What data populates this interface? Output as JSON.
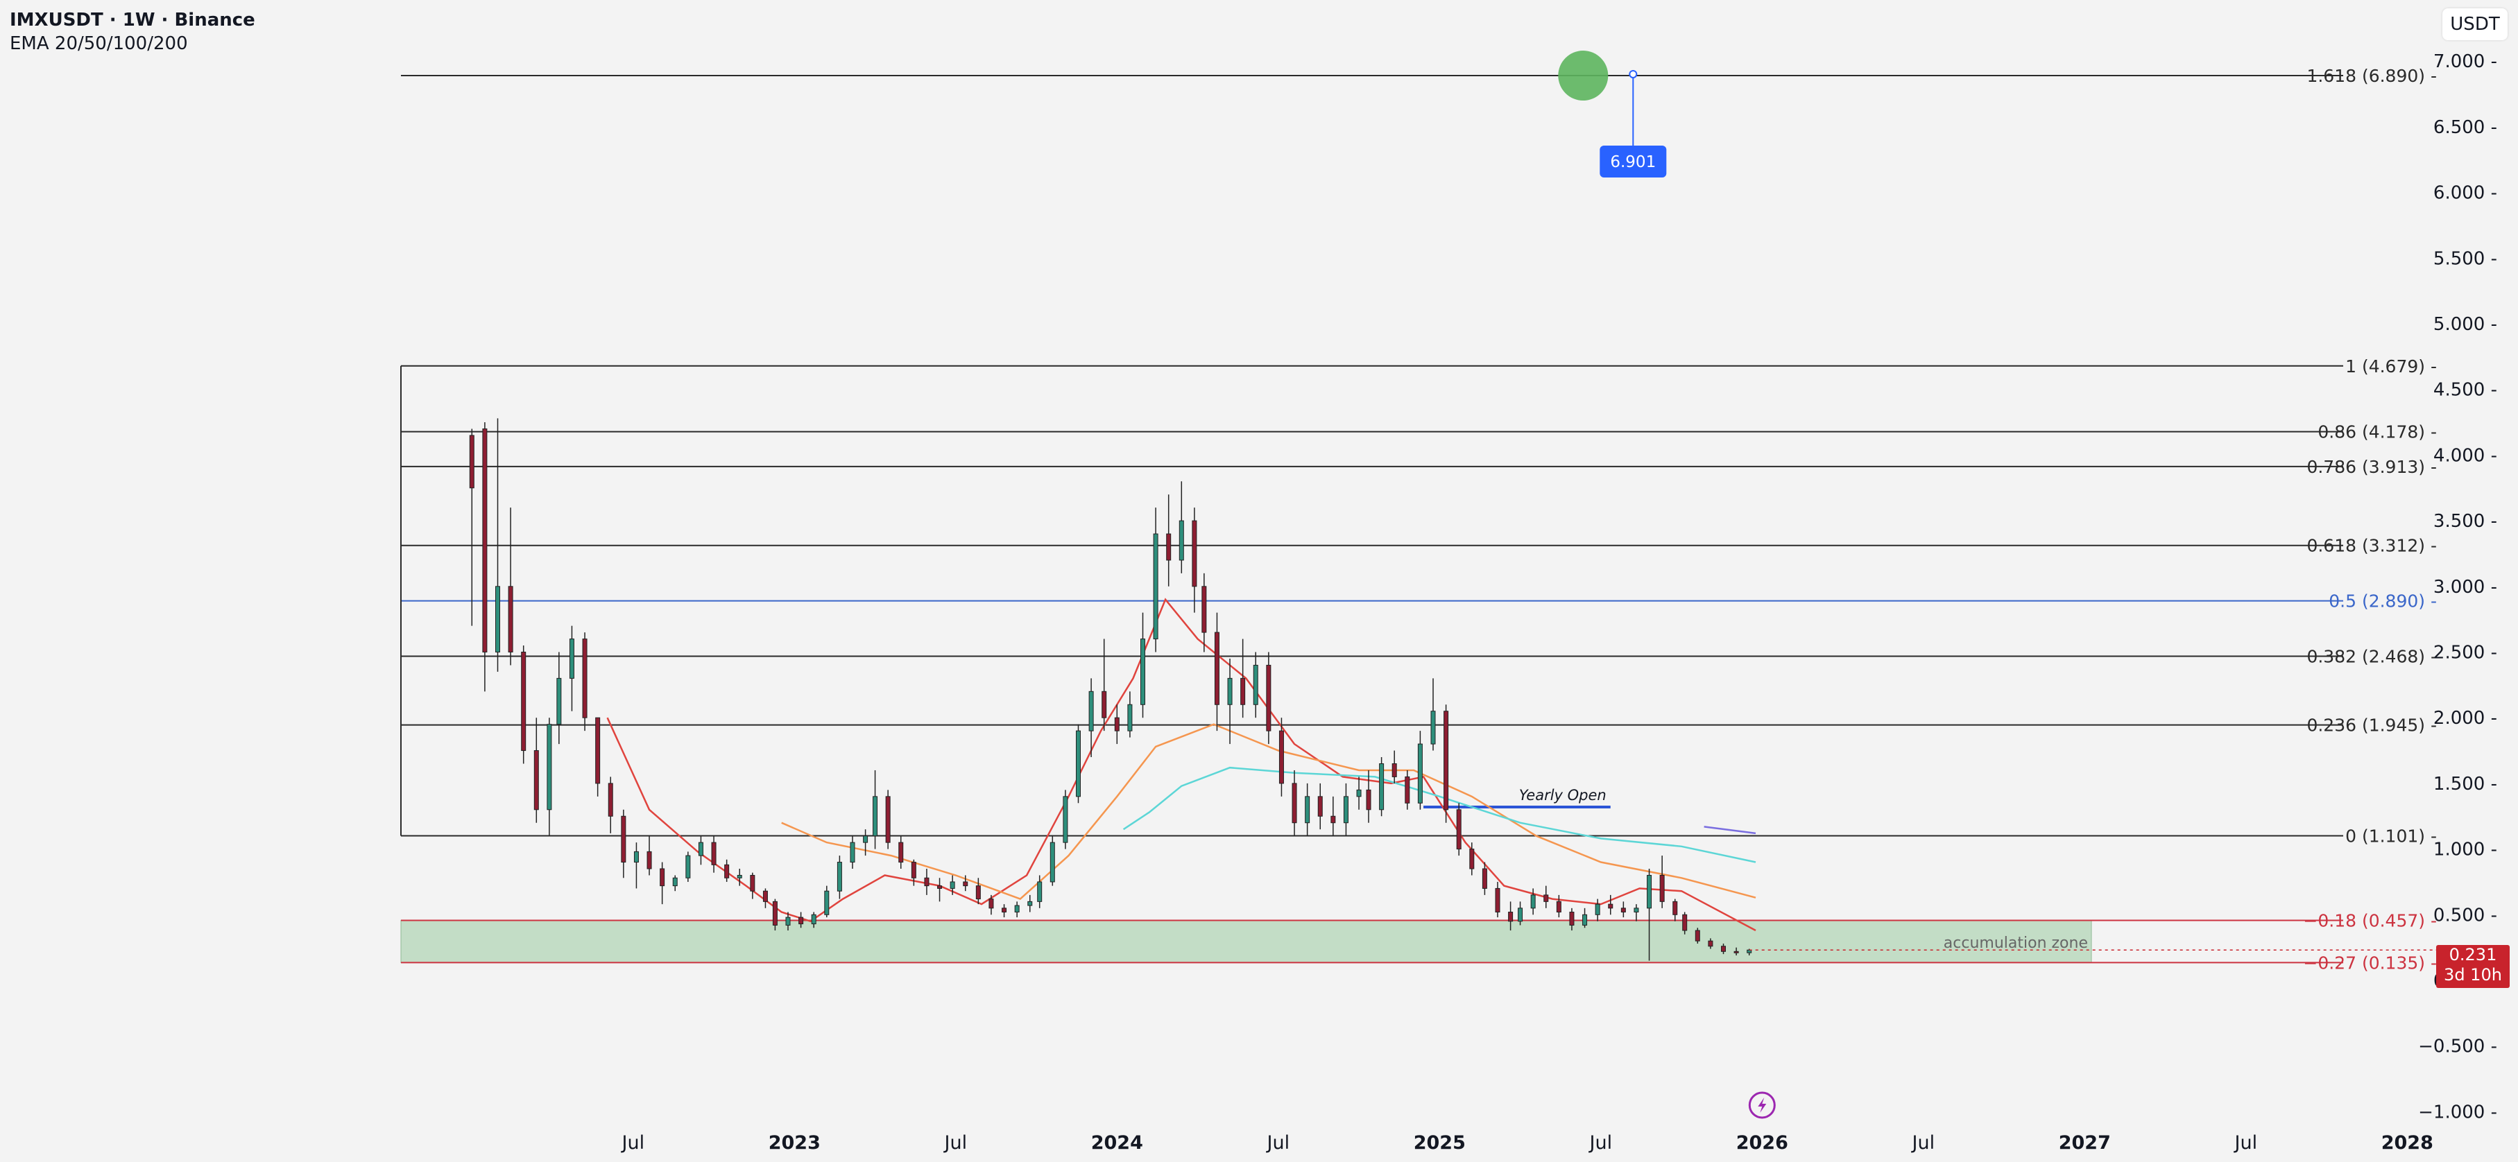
{
  "header": {
    "title": "IMXUSDT · 1W · Binance",
    "indicator": "EMA 20/50/100/200",
    "currency": "USDT"
  },
  "last_price": {
    "value": "0.231",
    "countdown": "3d 10h"
  },
  "colors": {
    "background": "#f3f3f3",
    "up": "#2e8f7c",
    "down": "#8e1e32",
    "ema20": "#e0443e",
    "ema50": "#f5964f",
    "ema100": "#5cd6d6",
    "fib_line": "#2a2a2a",
    "fib_half": "#3a66c9",
    "fib_ext": "#cc3340",
    "zone_fill": "#c3ddc6",
    "yearly_open": "#2c55d6",
    "target": "#5db55e",
    "target_label": "#2962ff"
  },
  "chart_data": {
    "type": "candlestick",
    "ylim": [
      -1.0,
      7.0
    ],
    "y_ticks": [
      "7.000",
      "6.500",
      "6.000",
      "5.500",
      "5.000",
      "4.500",
      "4.000",
      "3.500",
      "3.000",
      "2.500",
      "2.000",
      "1.500",
      "1.000",
      "0.500",
      "0.000",
      "−0.500",
      "−1.000"
    ],
    "x_ticks": [
      "Jul",
      "2023",
      "Jul",
      "2024",
      "Jul",
      "2025",
      "Jul",
      "2026",
      "Jul",
      "2027",
      "Jul",
      "2028"
    ],
    "fib_levels": [
      {
        "label": "1.618 (6.890)",
        "value": 6.89,
        "color": "#2a2a2a"
      },
      {
        "label": "1 (4.679)",
        "value": 4.679,
        "color": "#2a2a2a"
      },
      {
        "label": "0.86 (4.178)",
        "value": 4.178,
        "color": "#2a2a2a"
      },
      {
        "label": "0.786 (3.913)",
        "value": 3.913,
        "color": "#2a2a2a"
      },
      {
        "label": "0.618 (3.312)",
        "value": 3.312,
        "color": "#2a2a2a"
      },
      {
        "label": "0.5 (2.890)",
        "value": 2.89,
        "color": "#3a66c9"
      },
      {
        "label": "0.382 (2.468)",
        "value": 2.468,
        "color": "#2a2a2a"
      },
      {
        "label": "0.236 (1.945)",
        "value": 1.945,
        "color": "#2a2a2a"
      },
      {
        "label": "0 (1.101)",
        "value": 1.101,
        "color": "#2a2a2a"
      },
      {
        "label": "−0.18 (0.457)",
        "value": 0.457,
        "color": "#cc3340"
      },
      {
        "label": "−0.27 (0.135)",
        "value": 0.135,
        "color": "#cc3340"
      }
    ],
    "zone": {
      "label": "accumulation zone",
      "from": 0.135,
      "to": 0.457
    },
    "yearly_open": {
      "label": "Yearly Open",
      "value": 1.32,
      "start": 2024.95,
      "end": 2025.53
    },
    "target": {
      "label": "6.901",
      "value": 6.901,
      "time": 2025.6
    },
    "emas": [
      {
        "name": "EMA 20",
        "color": "#e0443e",
        "points": [
          [
            2022.42,
            2.0
          ],
          [
            2022.55,
            1.3
          ],
          [
            2022.7,
            0.98
          ],
          [
            2022.85,
            0.72
          ],
          [
            2022.96,
            0.52
          ],
          [
            2023.05,
            0.45
          ],
          [
            2023.15,
            0.62
          ],
          [
            2023.28,
            0.8
          ],
          [
            2023.45,
            0.72
          ],
          [
            2023.58,
            0.58
          ],
          [
            2023.72,
            0.8
          ],
          [
            2023.85,
            1.4
          ],
          [
            2023.95,
            1.9
          ],
          [
            2024.05,
            2.3
          ],
          [
            2024.15,
            2.9
          ],
          [
            2024.25,
            2.6
          ],
          [
            2024.4,
            2.3
          ],
          [
            2024.55,
            1.8
          ],
          [
            2024.7,
            1.55
          ],
          [
            2024.85,
            1.5
          ],
          [
            2024.95,
            1.55
          ],
          [
            2025.08,
            1.05
          ],
          [
            2025.2,
            0.72
          ],
          [
            2025.35,
            0.62
          ],
          [
            2025.5,
            0.58
          ],
          [
            2025.62,
            0.7
          ],
          [
            2025.75,
            0.68
          ],
          [
            2025.98,
            0.38
          ]
        ]
      },
      {
        "name": "EMA 50",
        "color": "#f5964f",
        "points": [
          [
            2022.96,
            1.2
          ],
          [
            2023.1,
            1.05
          ],
          [
            2023.3,
            0.95
          ],
          [
            2023.5,
            0.8
          ],
          [
            2023.7,
            0.62
          ],
          [
            2023.85,
            0.95
          ],
          [
            2024.0,
            1.4
          ],
          [
            2024.12,
            1.78
          ],
          [
            2024.3,
            1.95
          ],
          [
            2024.5,
            1.75
          ],
          [
            2024.75,
            1.6
          ],
          [
            2024.92,
            1.6
          ],
          [
            2025.1,
            1.4
          ],
          [
            2025.3,
            1.1
          ],
          [
            2025.5,
            0.9
          ],
          [
            2025.75,
            0.78
          ],
          [
            2025.98,
            0.63
          ]
        ]
      },
      {
        "name": "EMA 100",
        "color": "#5cd6d6",
        "points": [
          [
            2024.02,
            1.15
          ],
          [
            2024.1,
            1.28
          ],
          [
            2024.2,
            1.48
          ],
          [
            2024.35,
            1.62
          ],
          [
            2024.55,
            1.58
          ],
          [
            2024.8,
            1.55
          ],
          [
            2025.0,
            1.4
          ],
          [
            2025.25,
            1.2
          ],
          [
            2025.5,
            1.08
          ],
          [
            2025.75,
            1.02
          ],
          [
            2025.98,
            0.9
          ]
        ]
      },
      {
        "name": "EMA 200",
        "color": "#7a6ee0",
        "points": [
          [
            2025.82,
            1.17
          ],
          [
            2025.98,
            1.12
          ]
        ]
      }
    ],
    "candles": [
      [
        2022.0,
        4.15,
        4.2,
        2.7,
        3.75
      ],
      [
        2022.04,
        4.2,
        4.25,
        2.2,
        2.5
      ],
      [
        2022.08,
        2.5,
        4.28,
        2.35,
        3.0
      ],
      [
        2022.12,
        3.0,
        3.6,
        2.4,
        2.5
      ],
      [
        2022.16,
        2.5,
        2.55,
        1.65,
        1.75
      ],
      [
        2022.2,
        1.75,
        2.0,
        1.2,
        1.3
      ],
      [
        2022.24,
        1.3,
        2.0,
        1.1,
        1.95
      ],
      [
        2022.27,
        1.95,
        2.5,
        1.8,
        2.3
      ],
      [
        2022.31,
        2.3,
        2.7,
        2.05,
        2.6
      ],
      [
        2022.35,
        2.6,
        2.65,
        1.9,
        2.0
      ],
      [
        2022.39,
        2.0,
        2.0,
        1.4,
        1.5
      ],
      [
        2022.43,
        1.5,
        1.55,
        1.12,
        1.25
      ],
      [
        2022.47,
        1.25,
        1.3,
        0.78,
        0.9
      ],
      [
        2022.51,
        0.9,
        1.05,
        0.7,
        0.98
      ],
      [
        2022.55,
        0.98,
        1.1,
        0.8,
        0.85
      ],
      [
        2022.59,
        0.85,
        0.9,
        0.58,
        0.72
      ],
      [
        2022.63,
        0.72,
        0.8,
        0.68,
        0.78
      ],
      [
        2022.67,
        0.78,
        0.98,
        0.75,
        0.95
      ],
      [
        2022.71,
        0.95,
        1.1,
        0.88,
        1.05
      ],
      [
        2022.75,
        1.05,
        1.1,
        0.82,
        0.88
      ],
      [
        2022.79,
        0.88,
        0.92,
        0.75,
        0.78
      ],
      [
        2022.83,
        0.78,
        0.85,
        0.72,
        0.8
      ],
      [
        2022.87,
        0.8,
        0.82,
        0.62,
        0.68
      ],
      [
        2022.91,
        0.68,
        0.7,
        0.55,
        0.6
      ],
      [
        2022.94,
        0.6,
        0.62,
        0.38,
        0.42
      ],
      [
        2022.98,
        0.42,
        0.52,
        0.38,
        0.48
      ],
      [
        2023.02,
        0.48,
        0.52,
        0.4,
        0.43
      ],
      [
        2023.06,
        0.43,
        0.52,
        0.4,
        0.5
      ],
      [
        2023.1,
        0.5,
        0.72,
        0.48,
        0.68
      ],
      [
        2023.14,
        0.68,
        0.95,
        0.62,
        0.9
      ],
      [
        2023.18,
        0.9,
        1.1,
        0.85,
        1.05
      ],
      [
        2023.22,
        1.05,
        1.15,
        0.95,
        1.1
      ],
      [
        2023.25,
        1.1,
        1.6,
        1.0,
        1.4
      ],
      [
        2023.29,
        1.4,
        1.45,
        1.0,
        1.05
      ],
      [
        2023.33,
        1.05,
        1.1,
        0.85,
        0.9
      ],
      [
        2023.37,
        0.9,
        0.92,
        0.72,
        0.78
      ],
      [
        2023.41,
        0.78,
        0.85,
        0.65,
        0.72
      ],
      [
        2023.45,
        0.72,
        0.78,
        0.6,
        0.7
      ],
      [
        2023.49,
        0.7,
        0.8,
        0.65,
        0.75
      ],
      [
        2023.53,
        0.75,
        0.8,
        0.68,
        0.72
      ],
      [
        2023.57,
        0.72,
        0.78,
        0.58,
        0.62
      ],
      [
        2023.61,
        0.62,
        0.65,
        0.5,
        0.55
      ],
      [
        2023.65,
        0.55,
        0.58,
        0.48,
        0.52
      ],
      [
        2023.69,
        0.52,
        0.6,
        0.48,
        0.57
      ],
      [
        2023.73,
        0.57,
        0.65,
        0.52,
        0.6
      ],
      [
        2023.76,
        0.6,
        0.8,
        0.55,
        0.75
      ],
      [
        2023.8,
        0.75,
        1.1,
        0.72,
        1.05
      ],
      [
        2023.84,
        1.05,
        1.45,
        1.0,
        1.4
      ],
      [
        2023.88,
        1.4,
        1.95,
        1.35,
        1.9
      ],
      [
        2023.92,
        1.9,
        2.3,
        1.7,
        2.2
      ],
      [
        2023.96,
        2.2,
        2.6,
        1.9,
        2.0
      ],
      [
        2024.0,
        2.0,
        2.1,
        1.8,
        1.9
      ],
      [
        2024.04,
        1.9,
        2.2,
        1.85,
        2.1
      ],
      [
        2024.08,
        2.1,
        2.8,
        2.0,
        2.6
      ],
      [
        2024.12,
        2.6,
        3.6,
        2.5,
        3.4
      ],
      [
        2024.16,
        3.4,
        3.7,
        3.0,
        3.2
      ],
      [
        2024.2,
        3.2,
        3.8,
        3.1,
        3.5
      ],
      [
        2024.24,
        3.5,
        3.6,
        2.8,
        3.0
      ],
      [
        2024.27,
        3.0,
        3.1,
        2.5,
        2.65
      ],
      [
        2024.31,
        2.65,
        2.8,
        1.9,
        2.1
      ],
      [
        2024.35,
        2.1,
        2.45,
        1.8,
        2.3
      ],
      [
        2024.39,
        2.3,
        2.6,
        2.0,
        2.1
      ],
      [
        2024.43,
        2.1,
        2.5,
        2.0,
        2.4
      ],
      [
        2024.47,
        2.4,
        2.5,
        1.8,
        1.9
      ],
      [
        2024.51,
        1.9,
        2.0,
        1.4,
        1.5
      ],
      [
        2024.55,
        1.5,
        1.6,
        1.1,
        1.2
      ],
      [
        2024.59,
        1.2,
        1.5,
        1.1,
        1.4
      ],
      [
        2024.63,
        1.4,
        1.5,
        1.15,
        1.25
      ],
      [
        2024.67,
        1.25,
        1.4,
        1.1,
        1.2
      ],
      [
        2024.71,
        1.2,
        1.5,
        1.1,
        1.4
      ],
      [
        2024.75,
        1.4,
        1.55,
        1.3,
        1.45
      ],
      [
        2024.78,
        1.45,
        1.6,
        1.2,
        1.3
      ],
      [
        2024.82,
        1.3,
        1.7,
        1.25,
        1.65
      ],
      [
        2024.86,
        1.65,
        1.75,
        1.5,
        1.55
      ],
      [
        2024.9,
        1.55,
        1.6,
        1.3,
        1.35
      ],
      [
        2024.94,
        1.35,
        1.9,
        1.3,
        1.8
      ],
      [
        2024.98,
        1.8,
        2.3,
        1.75,
        2.05
      ],
      [
        2025.02,
        2.05,
        2.1,
        1.2,
        1.3
      ],
      [
        2025.06,
        1.3,
        1.35,
        0.95,
        1.0
      ],
      [
        2025.1,
        1.0,
        1.05,
        0.8,
        0.85
      ],
      [
        2025.14,
        0.85,
        0.9,
        0.65,
        0.7
      ],
      [
        2025.18,
        0.7,
        0.75,
        0.48,
        0.52
      ],
      [
        2025.22,
        0.52,
        0.6,
        0.38,
        0.45
      ],
      [
        2025.25,
        0.45,
        0.6,
        0.42,
        0.55
      ],
      [
        2025.29,
        0.55,
        0.7,
        0.5,
        0.65
      ],
      [
        2025.33,
        0.65,
        0.72,
        0.55,
        0.6
      ],
      [
        2025.37,
        0.6,
        0.65,
        0.48,
        0.52
      ],
      [
        2025.41,
        0.52,
        0.55,
        0.38,
        0.42
      ],
      [
        2025.45,
        0.42,
        0.55,
        0.4,
        0.5
      ],
      [
        2025.49,
        0.5,
        0.62,
        0.45,
        0.58
      ],
      [
        2025.53,
        0.58,
        0.65,
        0.5,
        0.55
      ],
      [
        2025.57,
        0.55,
        0.6,
        0.48,
        0.52
      ],
      [
        2025.61,
        0.52,
        0.58,
        0.45,
        0.55
      ],
      [
        2025.65,
        0.55,
        0.85,
        0.15,
        0.8
      ],
      [
        2025.69,
        0.8,
        0.95,
        0.55,
        0.6
      ],
      [
        2025.73,
        0.6,
        0.62,
        0.45,
        0.5
      ],
      [
        2025.76,
        0.5,
        0.52,
        0.35,
        0.38
      ],
      [
        2025.8,
        0.38,
        0.4,
        0.28,
        0.3
      ],
      [
        2025.84,
        0.3,
        0.32,
        0.24,
        0.26
      ],
      [
        2025.88,
        0.26,
        0.28,
        0.2,
        0.22
      ],
      [
        2025.92,
        0.22,
        0.25,
        0.19,
        0.21
      ],
      [
        2025.96,
        0.21,
        0.24,
        0.19,
        0.231
      ]
    ]
  }
}
